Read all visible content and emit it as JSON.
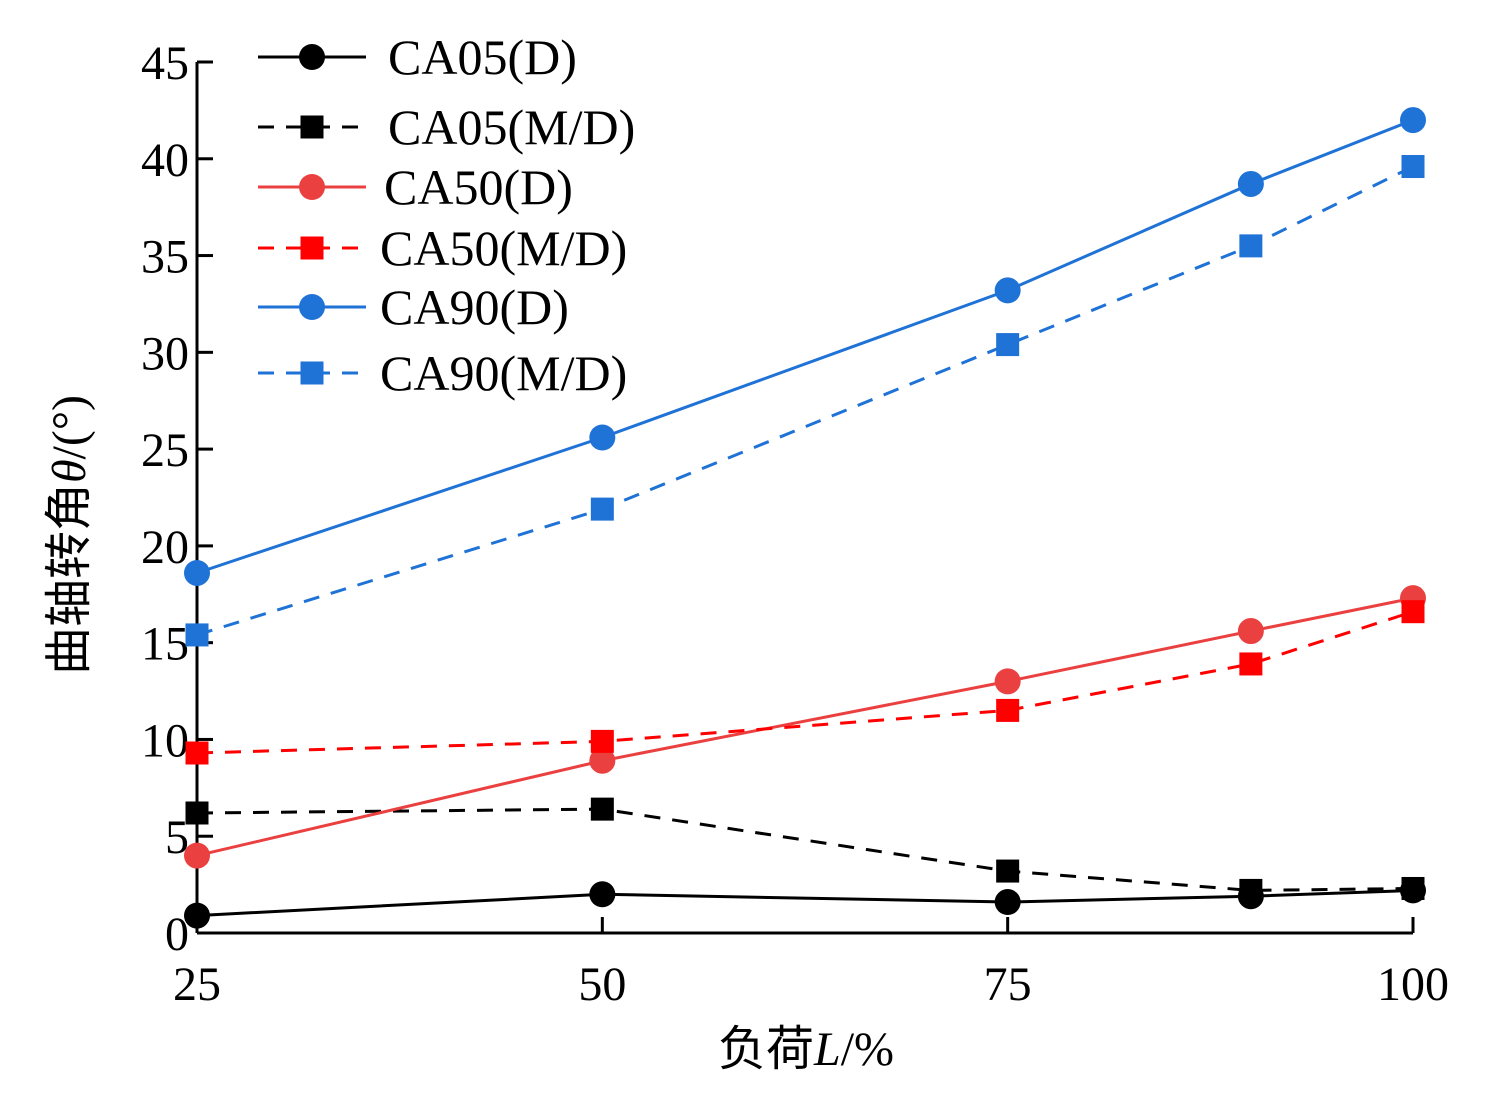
{
  "chart_data": {
    "type": "line",
    "title": "",
    "xlabel": "负荷L/%",
    "ylabel": "曲轴转角θ/(°)",
    "xlabel_parts": [
      "负荷",
      "L",
      "/%"
    ],
    "ylabel_parts": [
      "曲轴转角",
      "θ",
      "/(°)"
    ],
    "xlim": [
      25,
      100
    ],
    "ylim": [
      0,
      45
    ],
    "xticks": [
      25,
      50,
      75,
      100
    ],
    "yticks": [
      0,
      5,
      10,
      15,
      20,
      25,
      30,
      35,
      40,
      45
    ],
    "grid": false,
    "legend_position": "top-left",
    "series": [
      {
        "name": "CA05(D)",
        "color": "#000000",
        "dash": false,
        "marker": "circle",
        "x": [
          25,
          50,
          75,
          90,
          100
        ],
        "y": [
          0.9,
          2.0,
          1.6,
          1.9,
          2.2
        ]
      },
      {
        "name": "CA05(M/D)",
        "color": "#000000",
        "dash": true,
        "marker": "square",
        "x": [
          25,
          50,
          75,
          90,
          100
        ],
        "y": [
          6.2,
          6.4,
          3.2,
          2.2,
          2.3
        ]
      },
      {
        "name": "CA50(D)",
        "color": "#ea4040",
        "dash": false,
        "marker": "circle",
        "x": [
          25,
          50,
          75,
          90,
          100
        ],
        "y": [
          4.0,
          8.9,
          13.0,
          15.6,
          17.3
        ]
      },
      {
        "name": "CA50(M/D)",
        "color": "#ff0000",
        "dash": true,
        "marker": "square",
        "x": [
          25,
          50,
          75,
          90,
          100
        ],
        "y": [
          9.3,
          9.9,
          11.5,
          13.9,
          16.6
        ]
      },
      {
        "name": "CA90(D)",
        "color": "#1f72d6",
        "dash": false,
        "marker": "circle",
        "x": [
          25,
          50,
          75,
          90,
          100
        ],
        "y": [
          18.6,
          25.6,
          33.2,
          38.7,
          42.0
        ]
      },
      {
        "name": "CA90(M/D)",
        "color": "#1f72d6",
        "dash": true,
        "marker": "square",
        "x": [
          25,
          50,
          75,
          90,
          100
        ],
        "y": [
          15.4,
          21.9,
          30.4,
          35.5,
          39.6
        ]
      }
    ]
  }
}
